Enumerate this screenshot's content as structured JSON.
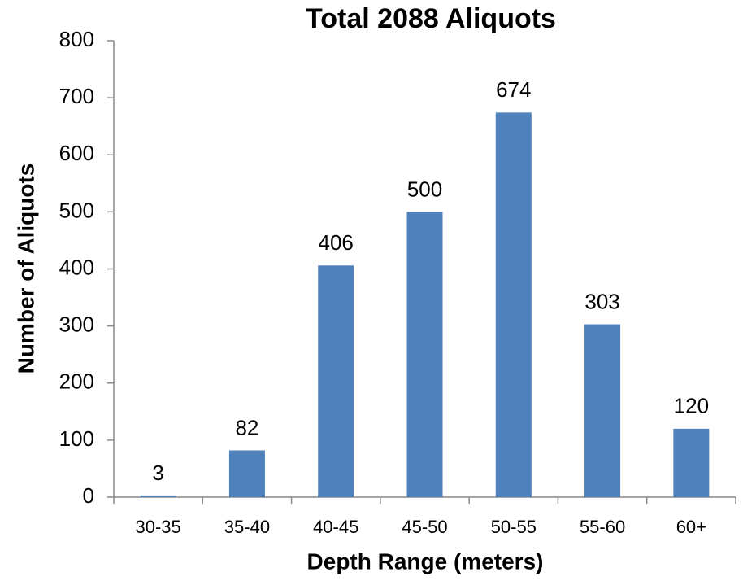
{
  "chart_data": {
    "type": "bar",
    "title": "Total 2088 Aliquots",
    "x_label": "Depth Range (meters)",
    "y_label": "Number of Aliquots",
    "categories": [
      "30-35",
      "35-40",
      "40-45",
      "45-50",
      "50-55",
      "55-60",
      "60+"
    ],
    "values": [
      3,
      82,
      406,
      500,
      674,
      303,
      120
    ],
    "color": "#4f81bd",
    "ylim": [
      0,
      800
    ],
    "yticks": [
      0,
      100,
      200,
      300,
      400,
      500,
      600,
      700,
      800
    ],
    "grid": false
  }
}
